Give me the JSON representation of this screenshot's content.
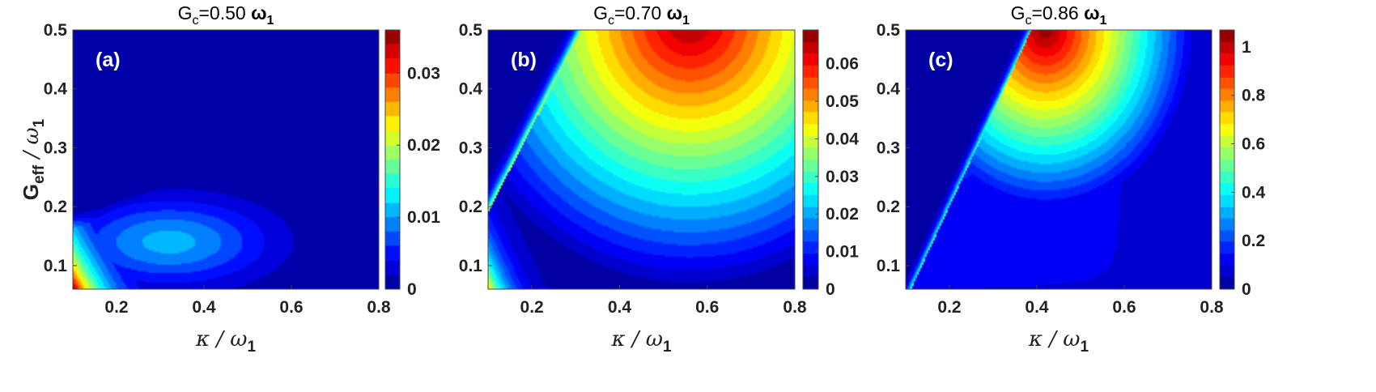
{
  "figure": {
    "colormap": "jet",
    "colormap_stops": [
      "#00008f",
      "#0000ff",
      "#0080ff",
      "#00ffff",
      "#80ff80",
      "#ffff00",
      "#ff8000",
      "#ff0000",
      "#800000"
    ]
  },
  "chart_data": [
    {
      "type": "heatmap",
      "panel_label": "(a)",
      "title_prefix": "G",
      "title_subscript": "c",
      "title_value": "=0.50 ",
      "title_unit": "ω",
      "title_unit_subscript": "1",
      "xlabel": "κ / ω",
      "xlabel_subscript": "1",
      "ylabel": "G",
      "ylabel_subscript": "eff",
      "ylabel_rest": " / ω",
      "ylabel_rest_subscript": "1",
      "xlim": [
        0.1,
        0.8
      ],
      "ylim": [
        0.06,
        0.5
      ],
      "x_ticks": [
        "0.2",
        "0.4",
        "0.6",
        "0.8"
      ],
      "y_ticks": [
        "0.1",
        "0.2",
        "0.3",
        "0.4",
        "0.5"
      ],
      "colorbar_range": [
        0,
        0.036
      ],
      "colorbar_ticks": [
        "0",
        "0.01",
        "0.02",
        "0.03"
      ],
      "contour_levels": 18,
      "description_of_field": "maximum at lower-left corner (κ≈0.1, G≈0.06); low elsewhere"
    },
    {
      "type": "heatmap",
      "panel_label": "(b)",
      "title_prefix": "G",
      "title_subscript": "c",
      "title_value": "=0.70 ",
      "title_unit": "ω",
      "title_unit_subscript": "1",
      "xlabel": "κ / ω",
      "xlabel_subscript": "1",
      "xlim": [
        0.1,
        0.8
      ],
      "ylim": [
        0.06,
        0.5
      ],
      "x_ticks": [
        "0.2",
        "0.4",
        "0.6",
        "0.8"
      ],
      "y_ticks": [
        "0.1",
        "0.2",
        "0.3",
        "0.4",
        "0.5"
      ],
      "colorbar_range": [
        0,
        0.069
      ],
      "colorbar_ticks": [
        "0",
        "0.01",
        "0.02",
        "0.03",
        "0.04",
        "0.05",
        "0.06"
      ],
      "contour_levels": 22,
      "description_of_field": "zero above diagonal; maximum near κ≈0.55, G≈0.5"
    },
    {
      "type": "heatmap",
      "panel_label": "(c)",
      "title_prefix": "G",
      "title_subscript": "c",
      "title_value": "=0.86 ",
      "title_unit": "ω",
      "title_unit_subscript": "1",
      "xlabel": "κ / ω",
      "xlabel_subscript": "1",
      "xlim": [
        0.1,
        0.8
      ],
      "ylim": [
        0.06,
        0.5
      ],
      "x_ticks": [
        "0.2",
        "0.4",
        "0.6",
        "0.8"
      ],
      "y_ticks": [
        "0.1",
        "0.2",
        "0.3",
        "0.4",
        "0.5"
      ],
      "colorbar_range": [
        0,
        1.07
      ],
      "colorbar_ticks": [
        "0",
        "0.2",
        "0.4",
        "0.6",
        "0.8",
        "1"
      ],
      "contour_levels": 22,
      "description_of_field": "zero above steep diagonal; maximum near κ≈0.42, G≈0.5"
    }
  ]
}
